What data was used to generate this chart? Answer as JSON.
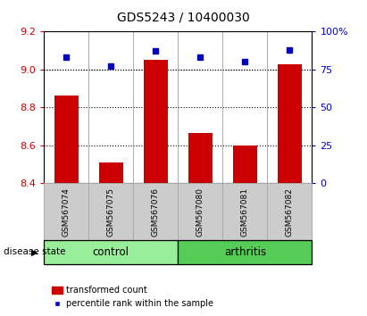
{
  "title": "GDS5243 / 10400030",
  "samples": [
    "GSM567074",
    "GSM567075",
    "GSM567076",
    "GSM567080",
    "GSM567081",
    "GSM567082"
  ],
  "bar_values": [
    8.865,
    8.51,
    9.05,
    8.665,
    8.6,
    9.03
  ],
  "percentile_values": [
    83,
    77,
    87,
    83,
    80,
    88
  ],
  "ylim_left": [
    8.4,
    9.2
  ],
  "ylim_right": [
    0,
    100
  ],
  "yticks_left": [
    8.4,
    8.6,
    8.8,
    9.0,
    9.2
  ],
  "yticks_right": [
    0,
    25,
    50,
    75,
    100
  ],
  "bar_color": "#cc0000",
  "point_color": "#0000cc",
  "bar_base": 8.4,
  "groups": [
    {
      "label": "control",
      "start": 0,
      "end": 3
    },
    {
      "label": "arthritis",
      "start": 3,
      "end": 6
    }
  ],
  "group_color_light": "#99ee99",
  "group_color_dark": "#55cc55",
  "left_tick_color": "#cc0000",
  "right_tick_color": "#0000cc",
  "disease_state_label": "disease state",
  "legend_items": [
    "transformed count",
    "percentile rank within the sample"
  ],
  "legend_colors": [
    "#cc0000",
    "#0000cc"
  ],
  "sample_box_color": "#cccccc",
  "bar_width": 0.55
}
